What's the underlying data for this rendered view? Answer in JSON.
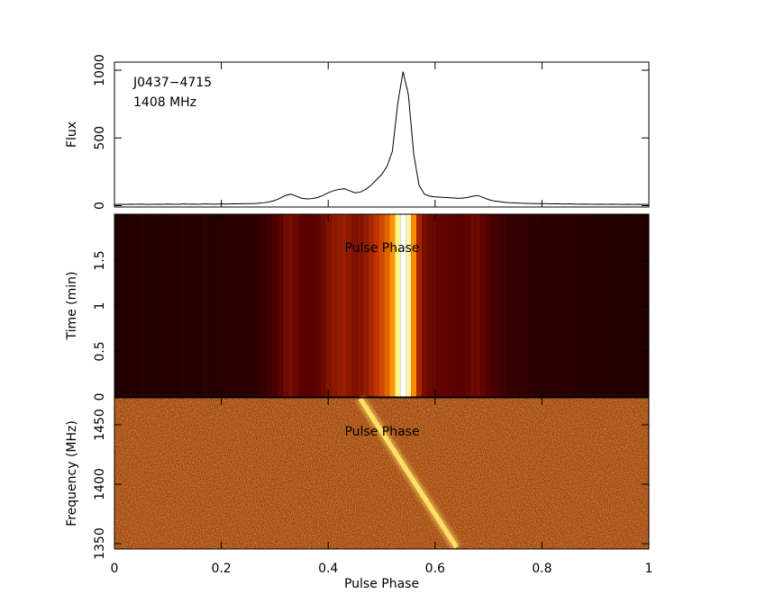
{
  "chart_data": [
    {
      "type": "line",
      "ylabel": "Flux",
      "annotations": [
        "J0437−4715",
        "1408 MHz"
      ],
      "color": "#000000",
      "x": [
        0,
        0.01,
        0.02,
        0.03,
        0.04,
        0.05,
        0.06,
        0.07,
        0.08,
        0.09,
        0.1,
        0.11,
        0.12,
        0.13,
        0.14,
        0.15,
        0.16,
        0.17,
        0.18,
        0.19,
        0.2,
        0.21,
        0.22,
        0.23,
        0.24,
        0.25,
        0.26,
        0.27,
        0.28,
        0.29,
        0.3,
        0.31,
        0.32,
        0.33,
        0.34,
        0.35,
        0.36,
        0.37,
        0.38,
        0.39,
        0.4,
        0.41,
        0.42,
        0.43,
        0.44,
        0.45,
        0.46,
        0.47,
        0.48,
        0.49,
        0.5,
        0.51,
        0.52,
        0.53,
        0.54,
        0.55,
        0.56,
        0.57,
        0.58,
        0.59,
        0.6,
        0.61,
        0.62,
        0.63,
        0.64,
        0.65,
        0.66,
        0.67,
        0.68,
        0.69,
        0.7,
        0.71,
        0.72,
        0.73,
        0.74,
        0.75,
        0.76,
        0.77,
        0.78,
        0.79,
        0.8,
        0.81,
        0.82,
        0.83,
        0.84,
        0.85,
        0.86,
        0.87,
        0.88,
        0.89,
        0.9,
        0.91,
        0.92,
        0.93,
        0.94,
        0.95,
        0.96,
        0.97,
        0.98,
        0.99,
        1
      ],
      "values": [
        8,
        10,
        9,
        11,
        10,
        12,
        9,
        10,
        11,
        10,
        12,
        11,
        10,
        13,
        11,
        12,
        10,
        13,
        12,
        11,
        13,
        12,
        14,
        13,
        14,
        15,
        15,
        18,
        22,
        28,
        38,
        55,
        75,
        85,
        70,
        55,
        50,
        52,
        60,
        75,
        95,
        110,
        120,
        125,
        110,
        95,
        100,
        120,
        150,
        190,
        230,
        290,
        400,
        750,
        990,
        820,
        380,
        150,
        85,
        70,
        65,
        62,
        60,
        58,
        55,
        55,
        60,
        70,
        75,
        60,
        45,
        35,
        30,
        25,
        22,
        20,
        18,
        17,
        16,
        15,
        15,
        14,
        13,
        14,
        12,
        13,
        12,
        11,
        12,
        11,
        10,
        11,
        10,
        11,
        10,
        9,
        10,
        9,
        10,
        9,
        9
      ],
      "xlim": [
        0,
        1
      ],
      "ylim": [
        -10,
        1060
      ],
      "yticks": [
        0,
        500,
        1000
      ]
    },
    {
      "type": "heatmap",
      "ylabel": "Time (min)",
      "annotations": [
        "Pulse Phase"
      ],
      "colormap": [
        "#000000",
        "#5a0000",
        "#c03000",
        "#ff9000",
        "#ffee60",
        "#ffffff"
      ],
      "xlim": [
        0,
        1
      ],
      "ylim": [
        0,
        2.01
      ],
      "yticks": [
        0,
        0.5,
        1,
        1.5
      ]
    },
    {
      "type": "line",
      "xlabel": "Pulse Phase",
      "ylabel": "Frequency (MHz)",
      "annotations": [
        "Pulse Phase"
      ],
      "color": "#ffe066",
      "background": "#9a3a08",
      "x": [
        0.46,
        0.64
      ],
      "values": [
        1472,
        1347
      ],
      "xlim": [
        0,
        1
      ],
      "ylim": [
        1345.5,
        1472.7
      ],
      "xticks": [
        0,
        0.2,
        0.4,
        0.6,
        0.8,
        1
      ],
      "yticks": [
        1350,
        1400,
        1450
      ]
    }
  ]
}
